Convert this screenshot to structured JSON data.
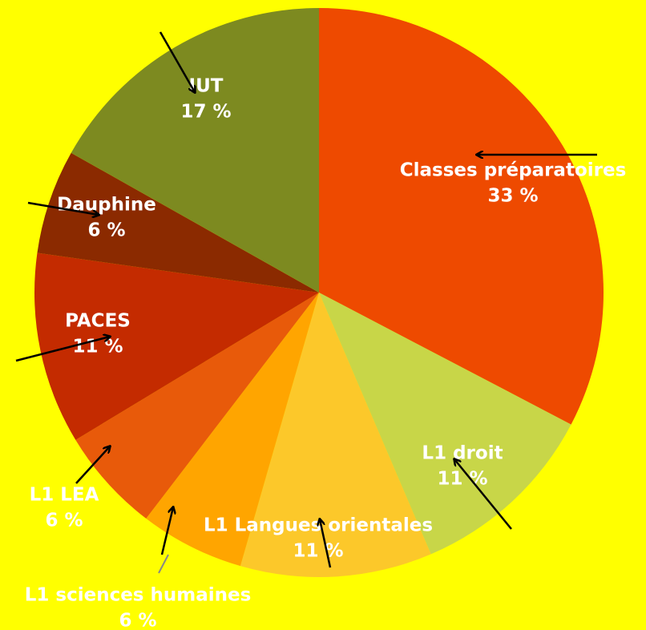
{
  "chart_data": {
    "type": "pie",
    "categories": [
      "Classes préparatoires",
      "L1 droit",
      "L1 Langues orientales",
      "L1 sciences humaines",
      "L1 LEA",
      "PACES",
      "Dauphine",
      "IUT"
    ],
    "values": [
      33,
      11,
      11,
      6,
      6,
      11,
      6,
      17
    ],
    "value_labels": [
      "33 %",
      "11 %",
      "11 %",
      "6 %",
      "6 %",
      "11 %",
      "6 %",
      "17 %"
    ],
    "colors": [
      "#ee4a00",
      "#c8d648",
      "#fcc82a",
      "#ffa500",
      "#e85a0a",
      "#c42b00",
      "#8b2a00",
      "#7d8a20"
    ]
  }
}
